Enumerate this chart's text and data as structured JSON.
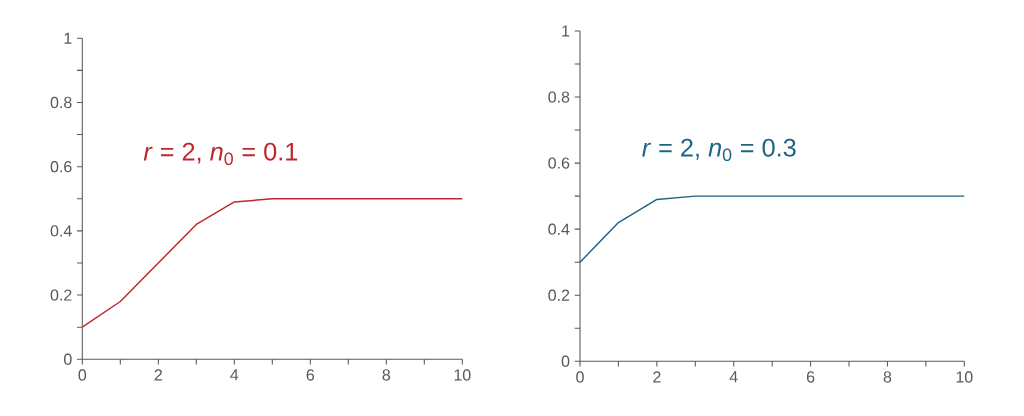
{
  "chart_data": [
    {
      "type": "line",
      "x": [
        0,
        1,
        2,
        3,
        4,
        5,
        6,
        7,
        8,
        9,
        10
      ],
      "series": [
        {
          "name": "*r* = 2, *n*$_{0}$ = 0.1",
          "color": "#c0272d",
          "values": [
            0.1,
            0.18,
            0.3,
            0.42,
            0.49,
            0.5,
            0.5,
            0.5,
            0.5,
            0.5,
            0.5
          ]
        }
      ],
      "xlim": [
        0,
        10
      ],
      "ylim": [
        0,
        1
      ],
      "xticks": [
        0,
        {
          "value": 1,
          "label": null
        },
        2,
        {
          "value": 3,
          "label": null
        },
        4,
        {
          "value": 5,
          "label": null
        },
        6,
        {
          "value": 7,
          "label": null
        },
        8,
        {
          "value": 9,
          "label": null
        },
        10
      ],
      "yticks": [
        0,
        {
          "value": 0.1,
          "label": null
        },
        0.2,
        {
          "value": 0.3,
          "label": null
        },
        0.4,
        {
          "value": 0.5,
          "label": null
        },
        0.6,
        {
          "value": 0.7,
          "label": null
        },
        0.8,
        {
          "value": 0.9,
          "label": null
        },
        1
      ]
    },
    {
      "type": "line",
      "x": [
        0,
        1,
        2,
        3,
        4,
        5,
        6,
        7,
        8,
        9,
        10
      ],
      "series": [
        {
          "name": "*r* = 2, *n*$_{0}$ = 0.3",
          "color": "#1f6484",
          "values": [
            0.3,
            0.42,
            0.49,
            0.5,
            0.5,
            0.5,
            0.5,
            0.5,
            0.5,
            0.5,
            0.5
          ]
        }
      ],
      "xlim": [
        0,
        10
      ],
      "ylim": [
        0,
        1
      ],
      "xticks": [
        0,
        {
          "value": 1,
          "label": null
        },
        2,
        {
          "value": 3,
          "label": null
        },
        4,
        {
          "value": 5,
          "label": null
        },
        6,
        {
          "value": 7,
          "label": null
        },
        8,
        {
          "value": 9,
          "label": null
        },
        10
      ],
      "yticks": [
        0,
        {
          "value": 0.1,
          "label": null
        },
        0.2,
        {
          "value": 0.3,
          "label": null
        },
        0.4,
        {
          "value": 0.5,
          "label": null
        },
        0.6,
        {
          "value": 0.7,
          "label": null
        },
        0.8,
        {
          "value": 0.9,
          "label": null
        },
        1
      ]
    }
  ]
}
